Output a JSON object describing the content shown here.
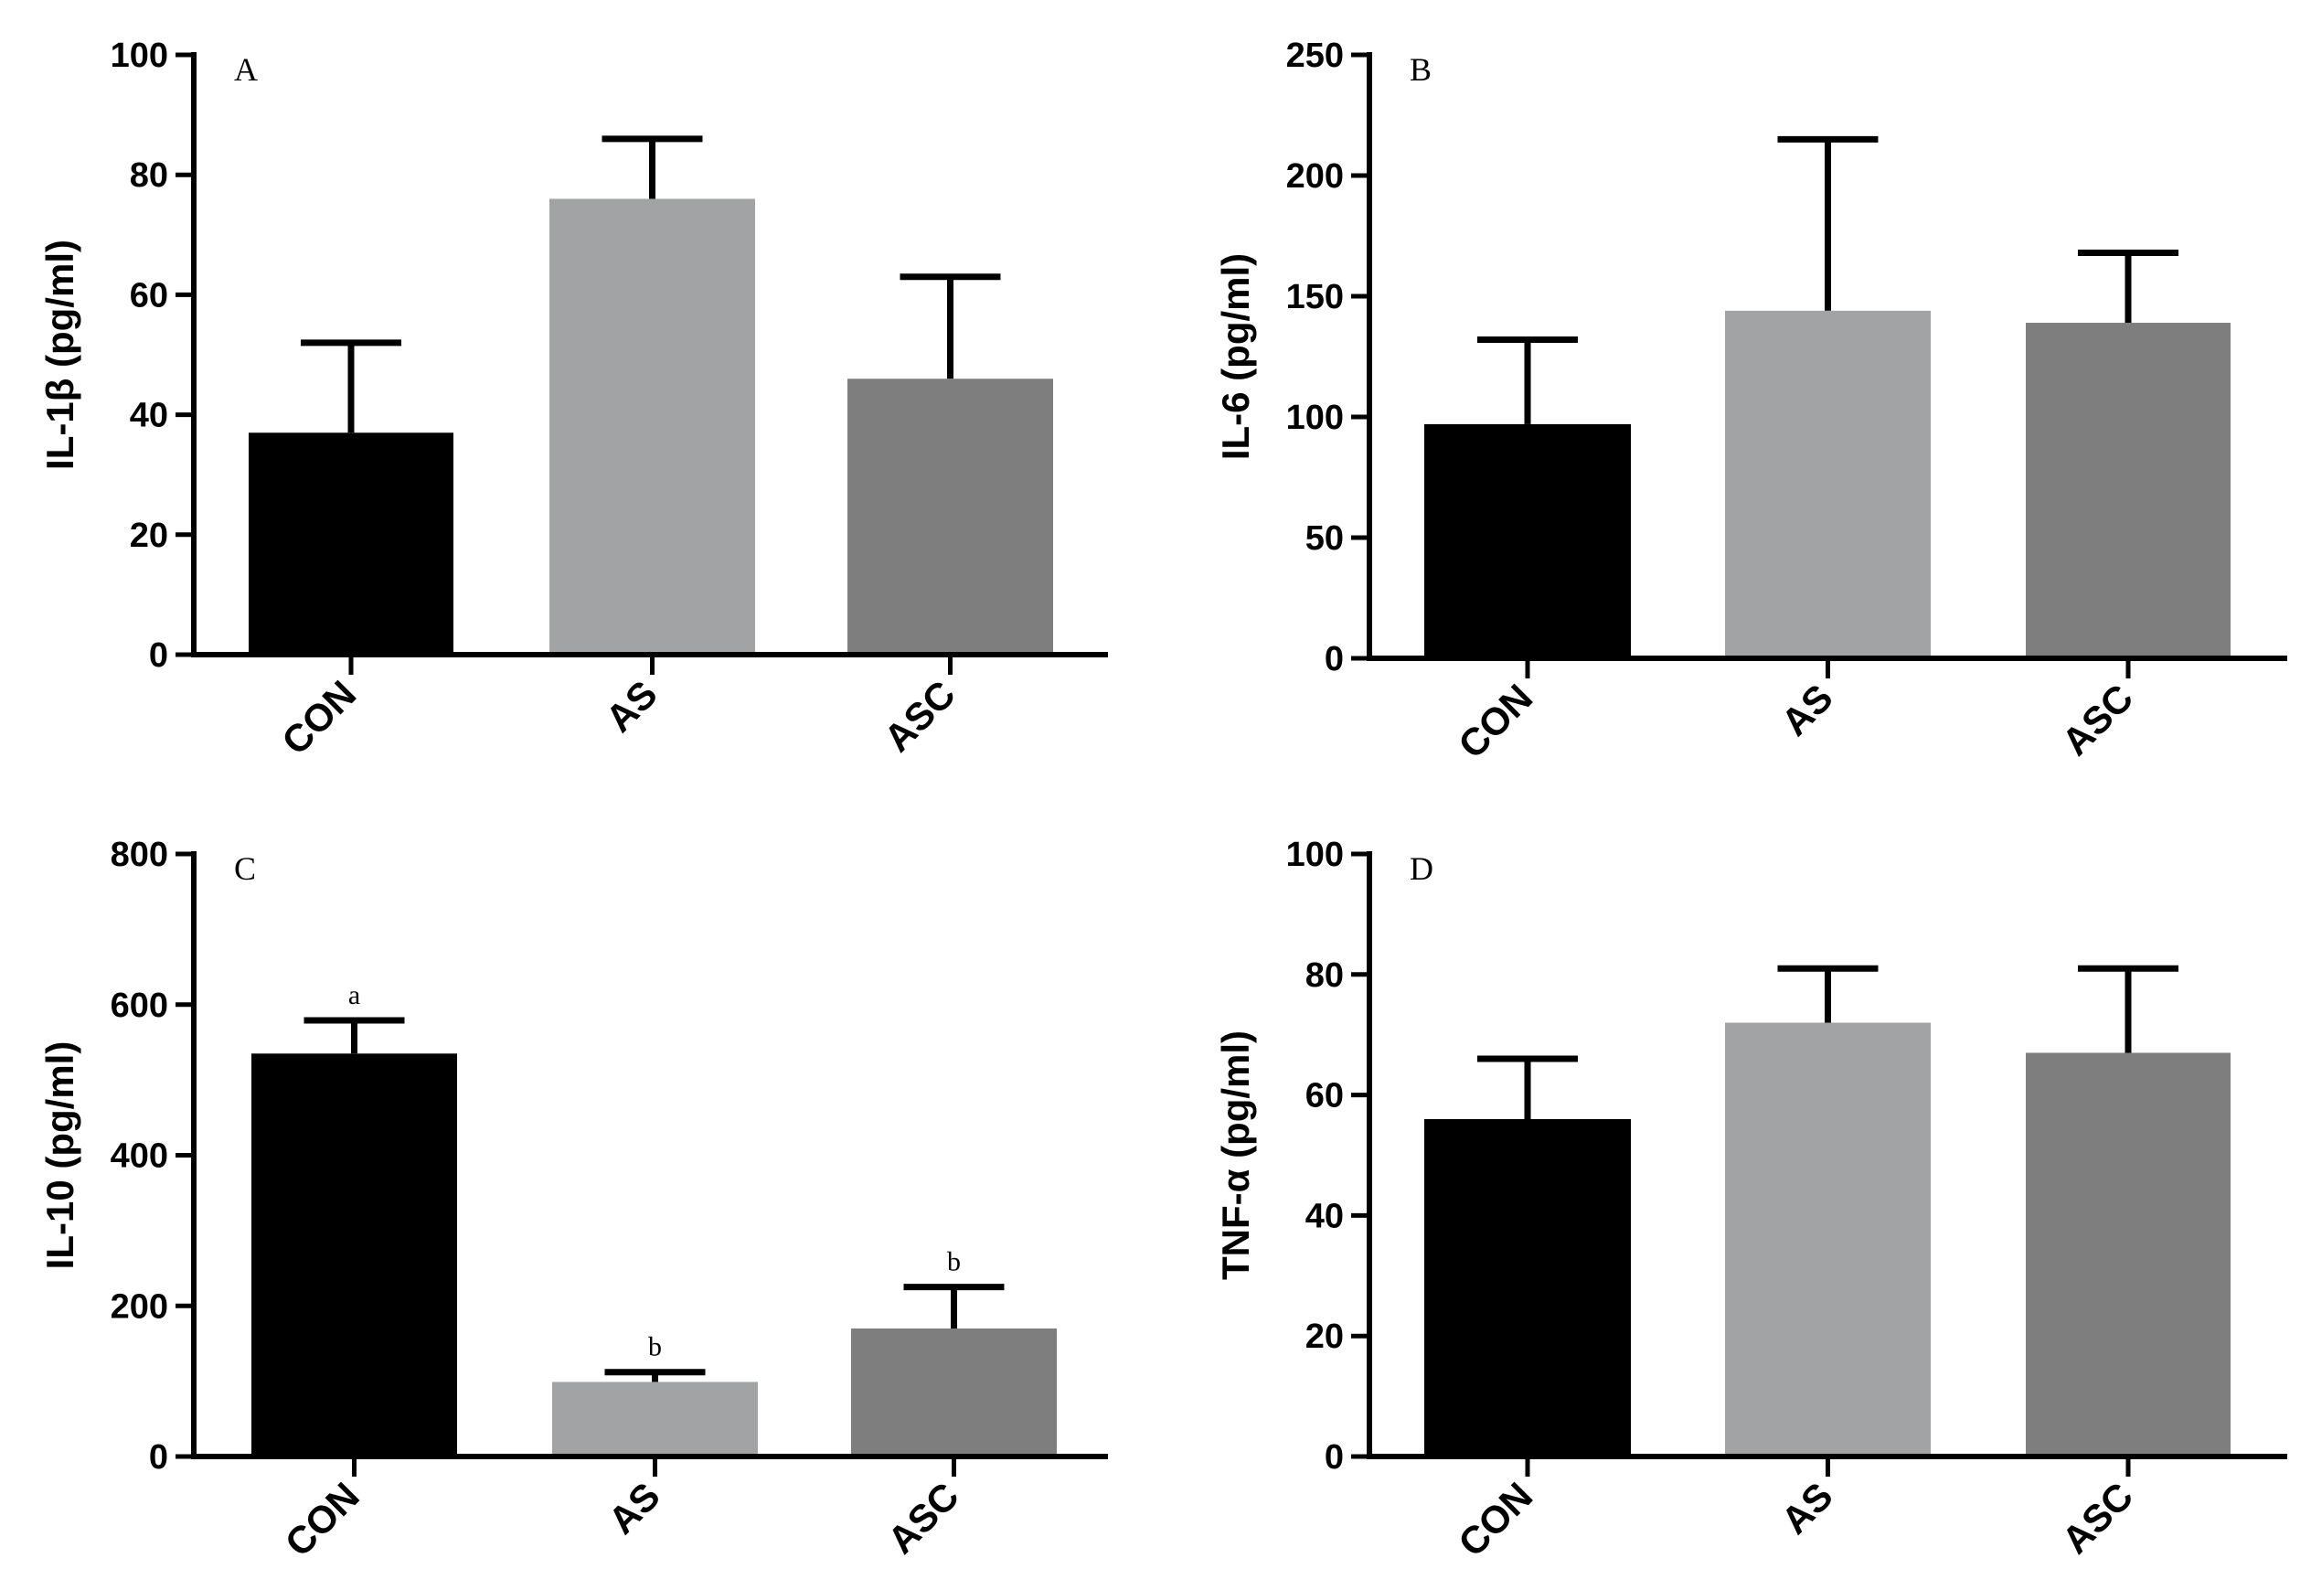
{
  "colors": {
    "CON": "#000000",
    "AS": "#a2a3a5",
    "ASC": "#7e7e7e"
  },
  "chart_data": [
    {
      "type": "bar",
      "panel": "A",
      "categories": [
        "CON",
        "AS",
        "ASC"
      ],
      "values": [
        37,
        76,
        46
      ],
      "errors": [
        15,
        10,
        17
      ],
      "significance": [
        "",
        "",
        ""
      ],
      "ylabel": "IL-1β  (pg/ml)",
      "ylim": [
        0,
        100
      ],
      "yticks": [
        0,
        20,
        40,
        60,
        80,
        100
      ]
    },
    {
      "type": "bar",
      "panel": "B",
      "categories": [
        "CON",
        "AS",
        "ASC"
      ],
      "values": [
        97,
        144,
        139
      ],
      "errors": [
        35,
        71,
        29
      ],
      "significance": [
        "",
        "",
        ""
      ],
      "ylabel": "IL-6 (pg/ml)",
      "ylim": [
        0,
        250
      ],
      "yticks": [
        0,
        50,
        100,
        150,
        200,
        250
      ]
    },
    {
      "type": "bar",
      "panel": "C",
      "categories": [
        "CON",
        "AS",
        "ASC"
      ],
      "values": [
        535,
        99,
        170
      ],
      "errors": [
        44,
        13,
        55
      ],
      "significance": [
        "a",
        "b",
        "b"
      ],
      "ylabel": "IL-10 (pg/ml)",
      "ylim": [
        0,
        800
      ],
      "yticks": [
        0,
        200,
        400,
        600,
        800
      ]
    },
    {
      "type": "bar",
      "panel": "D",
      "categories": [
        "CON",
        "AS",
        "ASC"
      ],
      "values": [
        56,
        72,
        67
      ],
      "errors": [
        10,
        9,
        14
      ],
      "significance": [
        "",
        "",
        ""
      ],
      "ylabel": "TNF-α (pg/ml)",
      "ylim": [
        0,
        100
      ],
      "yticks": [
        0,
        20,
        40,
        60,
        80,
        100
      ]
    }
  ]
}
